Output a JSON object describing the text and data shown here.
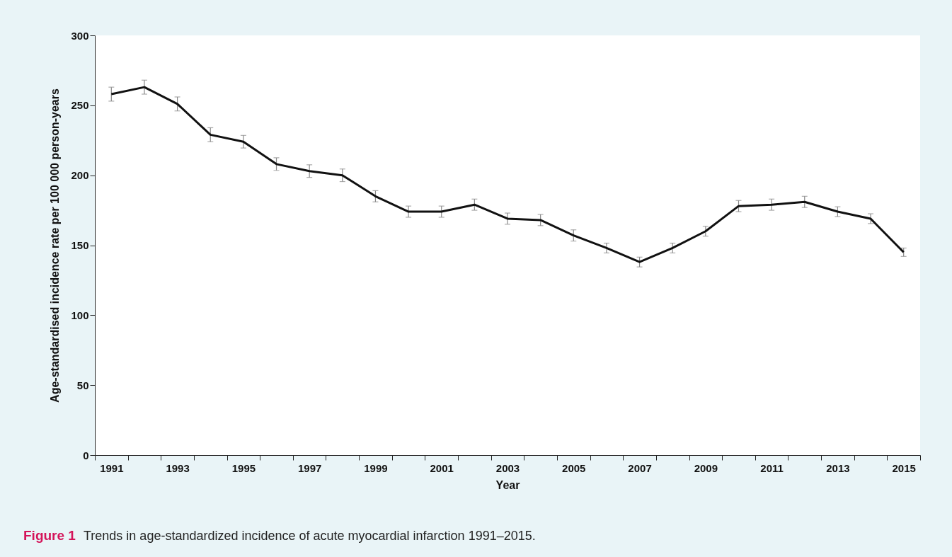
{
  "chart_data": {
    "type": "line",
    "title": "Figure 1",
    "annotations": [
      "Trends in age-standardized incidence of acute myocardial infarction 1991–2015."
    ],
    "xlabel": "Year",
    "ylabel": "Age-standardised incidence rate per 100 000 person-years",
    "categories": [
      "1991",
      null,
      "1993",
      null,
      "1995",
      null,
      "1997",
      null,
      "1999",
      null,
      "2001",
      null,
      "2003",
      null,
      "2005",
      null,
      "2007",
      null,
      "2009",
      null,
      "2011",
      null,
      "2013",
      null,
      "2015"
    ],
    "series": [
      {
        "color": "#111111",
        "values": [
          258,
          263,
          251,
          229,
          224,
          208,
          203,
          200,
          185,
          174,
          174,
          179,
          169,
          168,
          157,
          148,
          138,
          148,
          160,
          178,
          179,
          181,
          174,
          169,
          145
        ],
        "errors": [
          5,
          5,
          5,
          5,
          4.5,
          4.5,
          4.5,
          4.5,
          4,
          4,
          4,
          4,
          4,
          4,
          4,
          3.5,
          3.5,
          3.5,
          3.5,
          4,
          4,
          4,
          3.5,
          3.5,
          3
        ]
      }
    ],
    "ylim": [
      0,
      300
    ],
    "yticks": [
      0,
      50,
      100,
      150,
      200,
      250,
      300
    ],
    "grid": false,
    "marker": "none",
    "line_style": "solid"
  }
}
